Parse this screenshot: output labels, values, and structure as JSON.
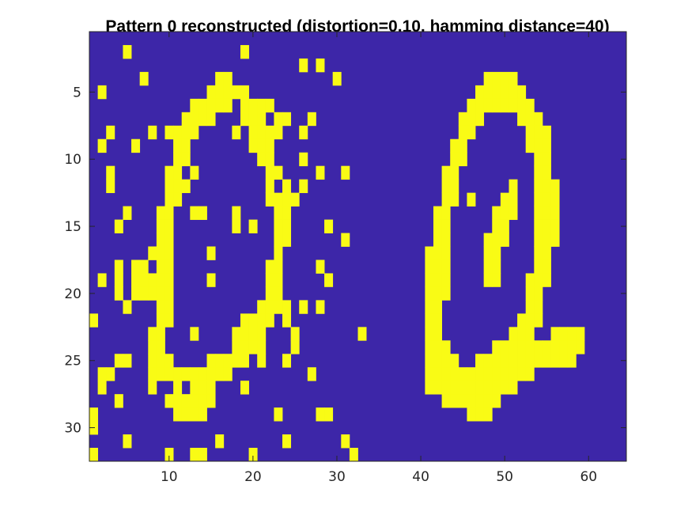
{
  "chart_data": {
    "type": "heatmap",
    "title": "Pattern 0 reconstructed (distortion=0.10, hamming distance=40)",
    "xlabel": "",
    "ylabel": "",
    "xlim": [
      0.5,
      64.5
    ],
    "ylim": [
      32.5,
      0.5
    ],
    "y_direction": "reversed",
    "grid": false,
    "legend": "none",
    "x_ticks": [
      10,
      20,
      30,
      40,
      50,
      60
    ],
    "y_ticks": [
      5,
      10,
      15,
      20,
      25,
      30
    ],
    "colors": {
      "off": "#3d26a8",
      "on": "#f9fb15"
    },
    "rows": [
      "0000000000000000000000000000000000000000000000000000000000000000",
      "0000000000000000000000000000000000000000000000000000000000000000",
      "0000000000000000000000000000000000000000000000000000000000000000",
      "0000000000000000000000000000000000000000000000000000000000000000",
      "0000000000000000000000000000000000000000000000000000000000000000",
      "0000000000000000000000000000000000000000000000000000000000000000",
      "0000000000000000000000000000000000000000000000000000000000000000",
      "0000000000000000000000000000000000000000000000000000000000000000",
      "0000000000000000000000000000000000000000000000000000000000000000",
      "0000000000000000000000000000000000000000000000000000000000000000",
      "0000000000000000000000000000000000000000000000000000000000000000",
      "0000000000000000000000000000000000000000000000000000000000000000",
      "0000000000000000000000000000000000000000000000000000000000000000",
      "0000000000000000000000000000000000000000000000000000000000000000",
      "0000000000000000000000000000000000000000000000000000000000000000",
      "0000000000000000000000000000000000000000000000000000000000000000",
      "0000000000000000000000000000000000000000000000000000000000000000",
      "0000000000000000000000000000000000000000000000000000000000000000",
      "0000000000000000000000000000000000000000000000000000000000000000",
      "0000000000000000000000000000000000000000000000000000000000000000",
      "0000000000000000000000000000000000000000000000000000000000000000",
      "0000000000000000000000000000000000000000000000000000000000000000",
      "0000000000000000000000000000000000000000000000000000000000000000",
      "0000000000000000000000000000000000000000000000000000000000000000",
      "0000000000000000000000000000000000000000000000000000000000000000",
      "0000000000000000000000000000000000000000000000000000000000000000",
      "0000000000000000000000000000000000000000000000000000000000000000",
      "0000000000000000000000000000000000000000000000000000000000000000",
      "0000000000000000000000000000000000000000000000000000000000000000",
      "0000000000000000000000000000000000000000000000000000000000000000",
      "0000000000000000000000000000000000000000000000000000000000000000",
      "0000000000000000000000000000000000000000000000000000000000000000"
    ],
    "on_cells": [
      [
        1,
        4
      ],
      [
        1,
        18
      ],
      [
        2,
        25
      ],
      [
        2,
        27
      ],
      [
        3,
        6
      ],
      [
        3,
        15
      ],
      [
        3,
        16
      ],
      [
        3,
        29
      ],
      [
        4,
        1
      ],
      [
        4,
        14
      ],
      [
        4,
        15
      ],
      [
        4,
        16
      ],
      [
        4,
        17
      ],
      [
        4,
        18
      ],
      [
        5,
        12
      ],
      [
        5,
        13
      ],
      [
        5,
        14
      ],
      [
        5,
        15
      ],
      [
        5,
        16
      ],
      [
        5,
        18
      ],
      [
        5,
        19
      ],
      [
        5,
        20
      ],
      [
        5,
        21
      ],
      [
        6,
        11
      ],
      [
        6,
        12
      ],
      [
        6,
        13
      ],
      [
        6,
        14
      ],
      [
        6,
        18
      ],
      [
        6,
        19
      ],
      [
        6,
        20
      ],
      [
        6,
        22
      ],
      [
        6,
        23
      ],
      [
        6,
        26
      ],
      [
        7,
        2
      ],
      [
        7,
        7
      ],
      [
        7,
        9
      ],
      [
        7,
        10
      ],
      [
        7,
        11
      ],
      [
        7,
        12
      ],
      [
        7,
        17
      ],
      [
        7,
        19
      ],
      [
        7,
        20
      ],
      [
        7,
        21
      ],
      [
        7,
        22
      ],
      [
        7,
        25
      ],
      [
        8,
        1
      ],
      [
        8,
        5
      ],
      [
        8,
        10
      ],
      [
        8,
        11
      ],
      [
        8,
        19
      ],
      [
        8,
        20
      ],
      [
        8,
        21
      ],
      [
        9,
        10
      ],
      [
        9,
        11
      ],
      [
        9,
        20
      ],
      [
        9,
        21
      ],
      [
        9,
        25
      ],
      [
        10,
        2
      ],
      [
        10,
        9
      ],
      [
        10,
        10
      ],
      [
        10,
        12
      ],
      [
        10,
        21
      ],
      [
        10,
        22
      ],
      [
        10,
        27
      ],
      [
        10,
        30
      ],
      [
        11,
        2
      ],
      [
        11,
        9
      ],
      [
        11,
        10
      ],
      [
        11,
        11
      ],
      [
        11,
        21
      ],
      [
        11,
        23
      ],
      [
        11,
        25
      ],
      [
        12,
        9
      ],
      [
        12,
        10
      ],
      [
        12,
        21
      ],
      [
        12,
        22
      ],
      [
        12,
        23
      ],
      [
        12,
        24
      ],
      [
        13,
        4
      ],
      [
        13,
        8
      ],
      [
        13,
        9
      ],
      [
        13,
        12
      ],
      [
        13,
        13
      ],
      [
        13,
        17
      ],
      [
        13,
        22
      ],
      [
        13,
        23
      ],
      [
        14,
        3
      ],
      [
        14,
        8
      ],
      [
        14,
        9
      ],
      [
        14,
        17
      ],
      [
        14,
        19
      ],
      [
        14,
        22
      ],
      [
        14,
        23
      ],
      [
        14,
        28
      ],
      [
        15,
        8
      ],
      [
        15,
        9
      ],
      [
        15,
        22
      ],
      [
        15,
        23
      ],
      [
        15,
        30
      ],
      [
        16,
        7
      ],
      [
        16,
        8
      ],
      [
        16,
        9
      ],
      [
        16,
        14
      ],
      [
        16,
        22
      ],
      [
        17,
        3
      ],
      [
        17,
        5
      ],
      [
        17,
        6
      ],
      [
        17,
        8
      ],
      [
        17,
        9
      ],
      [
        17,
        21
      ],
      [
        17,
        22
      ],
      [
        17,
        27
      ],
      [
        18,
        1
      ],
      [
        18,
        3
      ],
      [
        18,
        5
      ],
      [
        18,
        6
      ],
      [
        18,
        7
      ],
      [
        18,
        8
      ],
      [
        18,
        9
      ],
      [
        18,
        14
      ],
      [
        18,
        21
      ],
      [
        18,
        22
      ],
      [
        18,
        28
      ],
      [
        19,
        3
      ],
      [
        19,
        5
      ],
      [
        19,
        6
      ],
      [
        19,
        7
      ],
      [
        19,
        8
      ],
      [
        19,
        9
      ],
      [
        19,
        21
      ],
      [
        19,
        22
      ],
      [
        20,
        4
      ],
      [
        20,
        8
      ],
      [
        20,
        9
      ],
      [
        20,
        20
      ],
      [
        20,
        21
      ],
      [
        20,
        22
      ],
      [
        20,
        23
      ],
      [
        20,
        25
      ],
      [
        20,
        27
      ],
      [
        21,
        0
      ],
      [
        21,
        8
      ],
      [
        21,
        9
      ],
      [
        21,
        18
      ],
      [
        21,
        19
      ],
      [
        21,
        20
      ],
      [
        21,
        21
      ],
      [
        21,
        23
      ],
      [
        22,
        7
      ],
      [
        22,
        8
      ],
      [
        22,
        12
      ],
      [
        22,
        17
      ],
      [
        22,
        18
      ],
      [
        22,
        19
      ],
      [
        22,
        20
      ],
      [
        22,
        24
      ],
      [
        22,
        32
      ],
      [
        23,
        7
      ],
      [
        23,
        8
      ],
      [
        23,
        17
      ],
      [
        23,
        18
      ],
      [
        23,
        19
      ],
      [
        23,
        20
      ],
      [
        23,
        24
      ],
      [
        24,
        3
      ],
      [
        24,
        4
      ],
      [
        24,
        7
      ],
      [
        24,
        8
      ],
      [
        24,
        9
      ],
      [
        24,
        14
      ],
      [
        24,
        15
      ],
      [
        24,
        16
      ],
      [
        24,
        17
      ],
      [
        24,
        18
      ],
      [
        24,
        20
      ],
      [
        24,
        23
      ],
      [
        25,
        1
      ],
      [
        25,
        2
      ],
      [
        25,
        7
      ],
      [
        25,
        8
      ],
      [
        25,
        9
      ],
      [
        25,
        10
      ],
      [
        25,
        11
      ],
      [
        25,
        12
      ],
      [
        25,
        13
      ],
      [
        25,
        14
      ],
      [
        25,
        15
      ],
      [
        25,
        16
      ],
      [
        25,
        26
      ],
      [
        26,
        1
      ],
      [
        26,
        7
      ],
      [
        26,
        10
      ],
      [
        26,
        12
      ],
      [
        26,
        13
      ],
      [
        26,
        14
      ],
      [
        26,
        18
      ],
      [
        27,
        3
      ],
      [
        27,
        9
      ],
      [
        27,
        10
      ],
      [
        27,
        11
      ],
      [
        27,
        12
      ],
      [
        27,
        13
      ],
      [
        27,
        14
      ],
      [
        28,
        0
      ],
      [
        28,
        10
      ],
      [
        28,
        11
      ],
      [
        28,
        12
      ],
      [
        28,
        13
      ],
      [
        28,
        22
      ],
      [
        28,
        27
      ],
      [
        28,
        28
      ],
      [
        29,
        0
      ],
      [
        30,
        4
      ],
      [
        30,
        15
      ],
      [
        30,
        23
      ],
      [
        30,
        30
      ],
      [
        31,
        0
      ],
      [
        31,
        9
      ],
      [
        31,
        12
      ],
      [
        31,
        13
      ],
      [
        31,
        19
      ],
      [
        31,
        31
      ],
      [
        32,
        10
      ],
      [
        32,
        21
      ],
      [
        32,
        32
      ],
      [
        3,
        47
      ],
      [
        3,
        48
      ],
      [
        3,
        49
      ],
      [
        3,
        50
      ],
      [
        4,
        46
      ],
      [
        4,
        47
      ],
      [
        4,
        48
      ],
      [
        4,
        49
      ],
      [
        4,
        50
      ],
      [
        4,
        51
      ],
      [
        5,
        45
      ],
      [
        5,
        46
      ],
      [
        5,
        47
      ],
      [
        5,
        48
      ],
      [
        5,
        49
      ],
      [
        5,
        50
      ],
      [
        5,
        51
      ],
      [
        5,
        52
      ],
      [
        6,
        44
      ],
      [
        6,
        45
      ],
      [
        6,
        46
      ],
      [
        6,
        51
      ],
      [
        6,
        52
      ],
      [
        6,
        53
      ],
      [
        7,
        44
      ],
      [
        7,
        45
      ],
      [
        7,
        52
      ],
      [
        7,
        53
      ],
      [
        7,
        54
      ],
      [
        8,
        43
      ],
      [
        8,
        44
      ],
      [
        8,
        52
      ],
      [
        8,
        53
      ],
      [
        8,
        54
      ],
      [
        9,
        43
      ],
      [
        9,
        44
      ],
      [
        9,
        53
      ],
      [
        9,
        54
      ],
      [
        10,
        42
      ],
      [
        10,
        43
      ],
      [
        10,
        53
      ],
      [
        10,
        54
      ],
      [
        11,
        42
      ],
      [
        11,
        43
      ],
      [
        11,
        50
      ],
      [
        11,
        53
      ],
      [
        11,
        54
      ],
      [
        11,
        55
      ],
      [
        12,
        42
      ],
      [
        12,
        43
      ],
      [
        12,
        45
      ],
      [
        12,
        49
      ],
      [
        12,
        50
      ],
      [
        12,
        53
      ],
      [
        12,
        54
      ],
      [
        12,
        55
      ],
      [
        13,
        41
      ],
      [
        13,
        42
      ],
      [
        13,
        48
      ],
      [
        13,
        49
      ],
      [
        13,
        50
      ],
      [
        13,
        53
      ],
      [
        13,
        54
      ],
      [
        13,
        55
      ],
      [
        14,
        41
      ],
      [
        14,
        42
      ],
      [
        14,
        48
      ],
      [
        14,
        49
      ],
      [
        14,
        53
      ],
      [
        14,
        54
      ],
      [
        14,
        55
      ],
      [
        15,
        41
      ],
      [
        15,
        42
      ],
      [
        15,
        47
      ],
      [
        15,
        48
      ],
      [
        15,
        49
      ],
      [
        15,
        53
      ],
      [
        15,
        54
      ],
      [
        15,
        55
      ],
      [
        16,
        40
      ],
      [
        16,
        41
      ],
      [
        16,
        42
      ],
      [
        16,
        47
      ],
      [
        16,
        48
      ],
      [
        16,
        53
      ],
      [
        16,
        54
      ],
      [
        17,
        40
      ],
      [
        17,
        41
      ],
      [
        17,
        42
      ],
      [
        17,
        47
      ],
      [
        17,
        48
      ],
      [
        17,
        53
      ],
      [
        17,
        54
      ],
      [
        18,
        40
      ],
      [
        18,
        41
      ],
      [
        18,
        42
      ],
      [
        18,
        47
      ],
      [
        18,
        48
      ],
      [
        18,
        52
      ],
      [
        18,
        53
      ],
      [
        18,
        54
      ],
      [
        19,
        40
      ],
      [
        19,
        41
      ],
      [
        19,
        42
      ],
      [
        19,
        52
      ],
      [
        19,
        53
      ],
      [
        20,
        40
      ],
      [
        20,
        41
      ],
      [
        20,
        52
      ],
      [
        20,
        53
      ],
      [
        21,
        40
      ],
      [
        21,
        41
      ],
      [
        21,
        51
      ],
      [
        21,
        52
      ],
      [
        21,
        53
      ],
      [
        22,
        40
      ],
      [
        22,
        41
      ],
      [
        22,
        50
      ],
      [
        22,
        51
      ],
      [
        22,
        52
      ],
      [
        22,
        55
      ],
      [
        22,
        56
      ],
      [
        22,
        57
      ],
      [
        22,
        58
      ],
      [
        23,
        40
      ],
      [
        23,
        41
      ],
      [
        23,
        42
      ],
      [
        23,
        48
      ],
      [
        23,
        49
      ],
      [
        23,
        50
      ],
      [
        23,
        51
      ],
      [
        23,
        52
      ],
      [
        23,
        53
      ],
      [
        23,
        54
      ],
      [
        23,
        55
      ],
      [
        23,
        56
      ],
      [
        23,
        57
      ],
      [
        23,
        58
      ],
      [
        24,
        40
      ],
      [
        24,
        41
      ],
      [
        24,
        42
      ],
      [
        24,
        43
      ],
      [
        24,
        46
      ],
      [
        24,
        47
      ],
      [
        24,
        48
      ],
      [
        24,
        49
      ],
      [
        24,
        50
      ],
      [
        24,
        51
      ],
      [
        24,
        52
      ],
      [
        24,
        53
      ],
      [
        24,
        54
      ],
      [
        24,
        55
      ],
      [
        24,
        56
      ],
      [
        24,
        57
      ],
      [
        25,
        40
      ],
      [
        25,
        41
      ],
      [
        25,
        42
      ],
      [
        25,
        43
      ],
      [
        25,
        44
      ],
      [
        25,
        45
      ],
      [
        25,
        46
      ],
      [
        25,
        47
      ],
      [
        25,
        48
      ],
      [
        25,
        49
      ],
      [
        25,
        50
      ],
      [
        25,
        51
      ],
      [
        25,
        52
      ],
      [
        26,
        40
      ],
      [
        26,
        41
      ],
      [
        26,
        42
      ],
      [
        26,
        43
      ],
      [
        26,
        44
      ],
      [
        26,
        45
      ],
      [
        26,
        46
      ],
      [
        26,
        47
      ],
      [
        26,
        48
      ],
      [
        26,
        49
      ],
      [
        26,
        50
      ],
      [
        27,
        42
      ],
      [
        27,
        43
      ],
      [
        27,
        44
      ],
      [
        27,
        45
      ],
      [
        27,
        46
      ],
      [
        27,
        47
      ],
      [
        27,
        48
      ],
      [
        28,
        45
      ],
      [
        28,
        46
      ],
      [
        28,
        47
      ]
    ]
  }
}
